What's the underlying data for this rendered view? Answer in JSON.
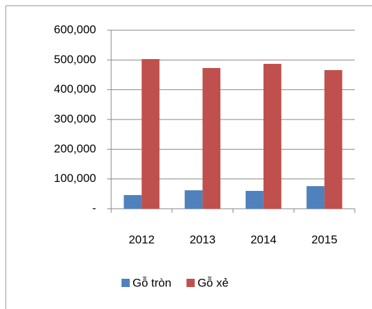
{
  "chart_data": {
    "type": "bar",
    "categories": [
      "2012",
      "2013",
      "2014",
      "2015"
    ],
    "series": [
      {
        "name": "Gỗ tròn",
        "color": "#4f81bd",
        "values": [
          46000,
          62000,
          60000,
          76000
        ]
      },
      {
        "name": "Gỗ xẻ",
        "color": "#c0504d",
        "values": [
          503000,
          473000,
          487000,
          466000
        ]
      }
    ],
    "ylim": [
      0,
      600000
    ],
    "yticks": [
      {
        "value": 0,
        "label": "-"
      },
      {
        "value": 100000,
        "label": "100,000"
      },
      {
        "value": 200000,
        "label": "200,000"
      },
      {
        "value": 300000,
        "label": "300,000"
      },
      {
        "value": 400000,
        "label": "400,000"
      },
      {
        "value": 500000,
        "label": "500,000"
      },
      {
        "value": 600000,
        "label": "600,000"
      }
    ],
    "grid": true,
    "legend": "bottom"
  }
}
